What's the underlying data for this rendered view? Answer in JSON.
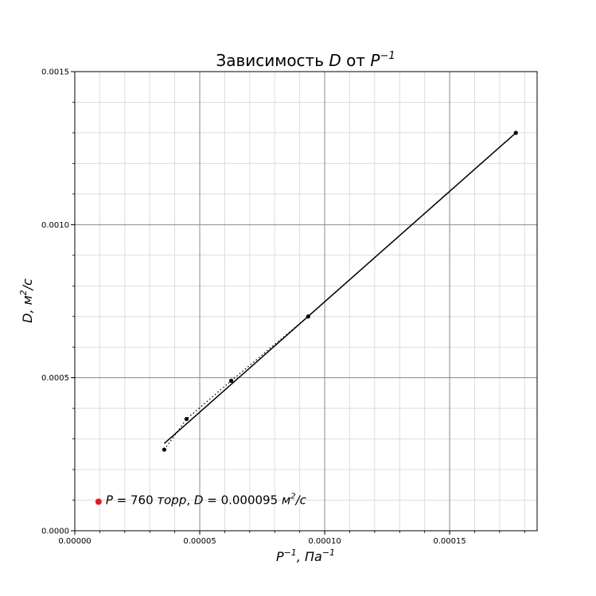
{
  "chart_data": {
    "type": "scatter",
    "title": {
      "prefix": "Зависимость ",
      "var": "D",
      "mid": " от ",
      "var2": "P",
      "sup": "−1"
    },
    "xlabel": {
      "var": "P",
      "sup": "−1",
      "rest": ", Па",
      "sup2": "−1"
    },
    "ylabel": {
      "var": "D",
      "rest": ", м",
      "sup": "2",
      "rest2": "/с"
    },
    "xlim": [
      0,
      0.000185
    ],
    "ylim": [
      0,
      0.0015
    ],
    "x_ticks": [
      0,
      5e-05,
      0.0001,
      0.00015
    ],
    "x_tick_labels": [
      "0.00000",
      "0.00005",
      "0.00010",
      "0.00015"
    ],
    "y_ticks": [
      0,
      0.0005,
      0.001,
      0.0015
    ],
    "y_tick_labels": [
      "0.0000",
      "0.0005",
      "0.0010",
      "0.0015"
    ],
    "grid": {
      "major": true,
      "minor": true
    },
    "series": [
      {
        "kind": "points-dotted",
        "color": "#000000",
        "x": [
          3.58e-05,
          4.47e-05,
          6.26e-05,
          9.34e-05,
          0.0001765
        ],
        "y": [
          0.000265,
          0.000365,
          0.00049,
          0.0007,
          0.0013
        ]
      },
      {
        "kind": "fit-line",
        "color": "#000000",
        "x": [
          3.58e-05,
          0.0001765
        ],
        "y": [
          0.000285,
          0.0013
        ]
      }
    ],
    "annotation": {
      "point": {
        "x": 9.5e-06,
        "y": 9.5e-05
      },
      "color": "#e41a1c",
      "text": {
        "p_var": "P",
        "p_value": " = 760 ",
        "unit_word": "торр",
        "sep": ", ",
        "d_var": "D",
        "d_value": " = 0.000095  ",
        "unit": "м",
        "unit_sup": "2",
        "unit_rest": "/с"
      }
    }
  }
}
